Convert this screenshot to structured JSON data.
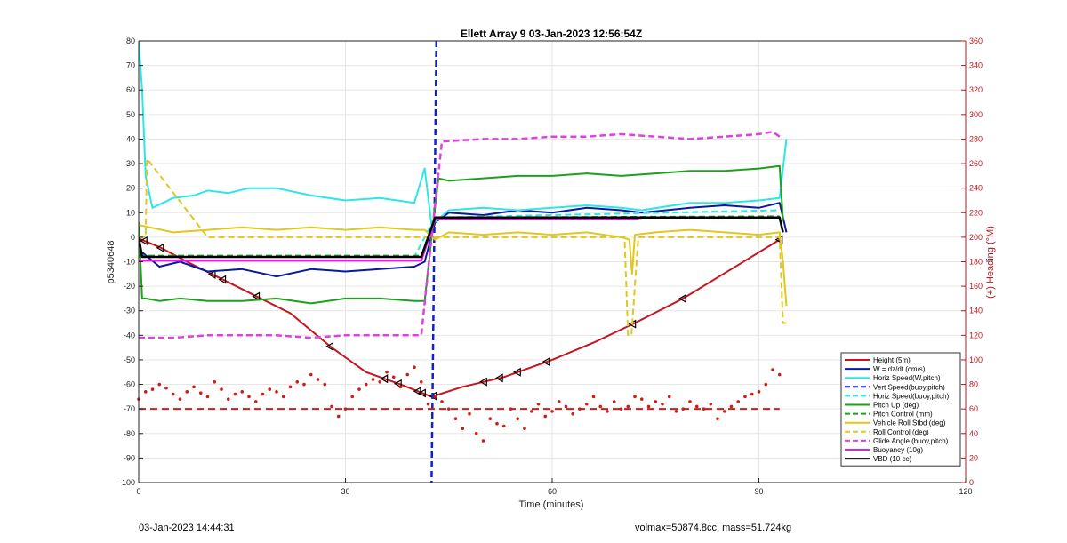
{
  "chart_data": {
    "type": "line",
    "title": "Ellett Array 9 03-Jan-2023 12:56:54Z",
    "xlabel": "Time (minutes)",
    "ylabel": "p5340648",
    "ylabel_right": "(+) Heading (°M)",
    "xlim": [
      0,
      120
    ],
    "ylim": [
      -100,
      80
    ],
    "ylim_right": [
      0,
      360
    ],
    "xticks": [
      0,
      30,
      60,
      90,
      120
    ],
    "yticks": [
      -100,
      -90,
      -80,
      -70,
      -60,
      -50,
      -40,
      -30,
      -20,
      -10,
      0,
      10,
      20,
      30,
      40,
      50,
      60,
      70,
      80
    ],
    "yticks_right": [
      0,
      20,
      40,
      60,
      80,
      100,
      120,
      140,
      160,
      180,
      200,
      220,
      240,
      260,
      280,
      300,
      320,
      340,
      360
    ],
    "grid": true,
    "legend_position": "bottom-right",
    "colors": {
      "axis_left": "#222222",
      "axis_right": "#c0141c",
      "grid": "#e6e6e6"
    },
    "series": [
      {
        "name": "Height (5m)",
        "color": "#c8141e",
        "style": "solid",
        "width": 2,
        "x": [
          0,
          3,
          7,
          12,
          17,
          22,
          28,
          33,
          38,
          42.5,
          47,
          53,
          60,
          66,
          72,
          79,
          86,
          93
        ],
        "y": [
          -0.5,
          -4,
          -10,
          -17,
          -24,
          -31,
          -45,
          -55,
          -60,
          -65,
          -61,
          -57,
          -50,
          -43,
          -35,
          -25,
          -13,
          -1
        ],
        "markers_x": [
          0.8,
          3.2,
          10.7,
          12.2,
          17.1,
          27.8,
          35.7,
          37.7,
          40.5,
          41.2,
          42.8,
          50.1,
          52.4,
          55,
          59.2,
          71.7,
          79,
          93
        ]
      },
      {
        "name": "W = dz/dt (cm/s)",
        "color": "#0a1a9e",
        "style": "solid",
        "width": 2,
        "x": [
          0,
          3,
          6,
          10,
          15,
          20,
          25,
          30,
          35,
          40,
          41.5,
          43,
          45,
          50,
          55,
          60,
          65,
          70,
          73,
          80,
          85,
          90,
          93,
          94
        ],
        "y": [
          -5,
          -12,
          -10,
          -14,
          -13,
          -16,
          -13,
          -14,
          -13,
          -12,
          -10,
          6,
          10,
          9,
          11,
          10,
          12,
          11,
          10,
          12,
          13,
          12,
          14,
          2
        ]
      },
      {
        "name": "Horiz Speed(W,pitch)",
        "color": "#2ee6e6",
        "style": "solid",
        "width": 2,
        "x": [
          0,
          0.5,
          1,
          2,
          5,
          8,
          10,
          13,
          16,
          20,
          25,
          30,
          35,
          40,
          41.5,
          42.5,
          45,
          50,
          55,
          60,
          65,
          70,
          73,
          80,
          85,
          90,
          93,
          94
        ],
        "y": [
          80,
          60,
          25,
          12,
          16,
          17,
          19,
          18,
          20,
          20,
          17,
          15,
          16,
          14,
          28,
          5,
          11,
          12,
          11,
          12,
          13,
          12,
          11,
          14,
          14,
          15,
          16,
          40
        ]
      },
      {
        "name": "Vert Speed(buoy,pitch)",
        "color": "#1020d0",
        "style": "dashed",
        "width": 2.5,
        "x": [
          43.2,
          42.5
        ],
        "y": [
          80,
          -100
        ]
      },
      {
        "name": "Horiz Speed(buoy,pitch)",
        "color": "#2ee6e6",
        "style": "dashed",
        "width": 2,
        "x": [
          0,
          40,
          43,
          93
        ],
        "y": [
          -8,
          -8,
          8,
          11
        ]
      },
      {
        "name": "Pitch Up (deg)",
        "color": "#1ea01e",
        "style": "solid",
        "width": 2,
        "x": [
          0,
          0.5,
          1,
          3,
          6,
          10,
          15,
          20,
          25,
          30,
          35,
          40,
          41.5,
          42.5,
          43.5,
          45,
          50,
          55,
          60,
          65,
          70,
          75,
          80,
          85,
          90,
          93,
          93.5
        ],
        "y": [
          6,
          -25,
          -25,
          -26,
          -25,
          -26,
          -26,
          -25,
          -27,
          -25,
          -25,
          -26,
          -26,
          0,
          24,
          23,
          24,
          25,
          25,
          26,
          25,
          26,
          27,
          27,
          28,
          29,
          7
        ]
      },
      {
        "name": "Pitch Control (mm)",
        "color": "#1ea01e",
        "style": "dashed",
        "width": 2,
        "x": [
          0,
          41,
          43,
          93
        ],
        "y": [
          -7.5,
          -7.5,
          8,
          8.5
        ]
      },
      {
        "name": "Vehicle Roll Stbd (deg)",
        "color": "#e0c820",
        "style": "solid",
        "width": 2,
        "x": [
          0,
          5,
          10,
          15,
          20,
          25,
          30,
          35,
          40,
          41.5,
          43,
          45,
          50,
          55,
          60,
          65,
          70,
          71.2,
          71.6,
          72,
          75,
          80,
          85,
          90,
          93,
          93.5,
          94
        ],
        "y": [
          5,
          2,
          3,
          4,
          3,
          4,
          3,
          4,
          3,
          3,
          -1,
          2,
          1,
          2,
          1,
          2,
          0,
          -1,
          -15,
          1,
          2,
          3,
          2,
          1,
          2,
          -10,
          -28
        ]
      },
      {
        "name": "Roll Control (deg)",
        "color": "#e0c820",
        "style": "dashed",
        "width": 2,
        "x": [
          0,
          1,
          1.2,
          10,
          11.5,
          12,
          19,
          19.5,
          20,
          35.5,
          36,
          36.5,
          41,
          42,
          45,
          70.5,
          71,
          71.5,
          72.5,
          73,
          93,
          93.5,
          94
        ],
        "y": [
          0,
          0,
          32,
          0,
          0,
          0,
          0,
          0,
          0,
          0,
          0,
          0,
          0,
          0,
          0,
          0,
          -40,
          -40,
          0,
          0,
          0,
          -35,
          -35
        ]
      },
      {
        "name": "Glide Angle (buoy,pitch)",
        "color": "#e040e0",
        "style": "dashed",
        "width": 2.5,
        "x": [
          0,
          5,
          10,
          15,
          20,
          25,
          30,
          35,
          40,
          41,
          42.5,
          44,
          50,
          55,
          60,
          65,
          70,
          75,
          80,
          85,
          90,
          92,
          93
        ],
        "y": [
          -41,
          -41,
          -40,
          -40,
          -40,
          -41,
          -40,
          -40,
          -40,
          -40,
          0,
          39,
          40,
          40,
          41,
          41,
          42,
          41,
          40,
          41,
          42,
          43,
          41
        ]
      },
      {
        "name": "Buoyancy (10g)",
        "color": "#e01ee0",
        "style": "solid",
        "width": 2.5,
        "x": [
          0,
          41,
          43,
          72,
          73,
          93
        ],
        "y": [
          -9.5,
          -9.5,
          7.5,
          7.5,
          8,
          8
        ]
      },
      {
        "name": "VBD (10 cc)",
        "color": "#000000",
        "style": "solid",
        "width": 2.5,
        "x": [
          0,
          0.5,
          41,
          43,
          93,
          93.5
        ],
        "y": [
          0,
          -8,
          -8,
          8,
          8,
          2
        ]
      }
    ],
    "heading": {
      "axis": "right",
      "color": "#d01c16",
      "reference_value": 60,
      "x": [
        0,
        1,
        2,
        3,
        4,
        5,
        6,
        7,
        8,
        9,
        10,
        11,
        12,
        13,
        14,
        15,
        16,
        17,
        18,
        19,
        20,
        21,
        22,
        23,
        24,
        25,
        26,
        27,
        28,
        29,
        30,
        31,
        32,
        33,
        34,
        35,
        36,
        37,
        38,
        39,
        40,
        41,
        42,
        43,
        44,
        45,
        46,
        47,
        48,
        49,
        50,
        51,
        52,
        53,
        54,
        55,
        56,
        57,
        58,
        59,
        60,
        61,
        62,
        63,
        64,
        65,
        66,
        67,
        68,
        69,
        70,
        71,
        72,
        73,
        74,
        75,
        76,
        77,
        78,
        79,
        80,
        81,
        82,
        83,
        84,
        85,
        86,
        87,
        88,
        89,
        90,
        91,
        92,
        93
      ],
      "y": [
        68,
        74,
        76,
        80,
        77,
        72,
        68,
        74,
        78,
        73,
        70,
        82,
        76,
        68,
        72,
        74,
        70,
        66,
        72,
        76,
        74,
        70,
        78,
        82,
        80,
        88,
        84,
        80,
        62,
        54,
        60,
        70,
        76,
        80,
        84,
        82,
        90,
        86,
        78,
        88,
        94,
        82,
        64,
        70,
        66,
        60,
        52,
        44,
        56,
        40,
        34,
        52,
        48,
        46,
        60,
        52,
        44,
        58,
        64,
        54,
        58,
        66,
        62,
        56,
        60,
        64,
        70,
        62,
        58,
        66,
        60,
        62,
        70,
        68,
        62,
        66,
        64,
        70,
        58,
        60,
        66,
        62,
        60,
        64,
        52,
        58,
        62,
        66,
        70,
        72,
        74,
        80,
        92,
        88
      ]
    }
  },
  "legend": [
    {
      "label": "Height (5m)",
      "color": "#c8141e",
      "style": "solid"
    },
    {
      "label": "W = dz/dt (cm/s)",
      "color": "#0a1a9e",
      "style": "solid"
    },
    {
      "label": "Horiz Speed(W,pitch)",
      "color": "#2ee6e6",
      "style": "solid"
    },
    {
      "label": "Vert Speed(buoy,pitch)",
      "color": "#1020d0",
      "style": "dashed"
    },
    {
      "label": "Horiz Speed(buoy,pitch)",
      "color": "#2ee6e6",
      "style": "dashed"
    },
    {
      "label": "Pitch Up (deg)",
      "color": "#1ea01e",
      "style": "solid"
    },
    {
      "label": "Pitch Control (mm)",
      "color": "#1ea01e",
      "style": "dashed"
    },
    {
      "label": "Vehicle Roll Stbd (deg)",
      "color": "#e0c820",
      "style": "solid"
    },
    {
      "label": "Roll Control (deg)",
      "color": "#e0c820",
      "style": "dashed"
    },
    {
      "label": "Glide Angle (buoy,pitch)",
      "color": "#e040e0",
      "style": "dashed"
    },
    {
      "label": "Buoyancy (10g)",
      "color": "#e01ee0",
      "style": "solid"
    },
    {
      "label": "VBD (10 cc)",
      "color": "#000000",
      "style": "solid"
    }
  ],
  "footer": {
    "timestamp": "03-Jan-2023 14:44:31",
    "vehicle_info": "volmax=50874.8cc, mass=51.724kg"
  }
}
